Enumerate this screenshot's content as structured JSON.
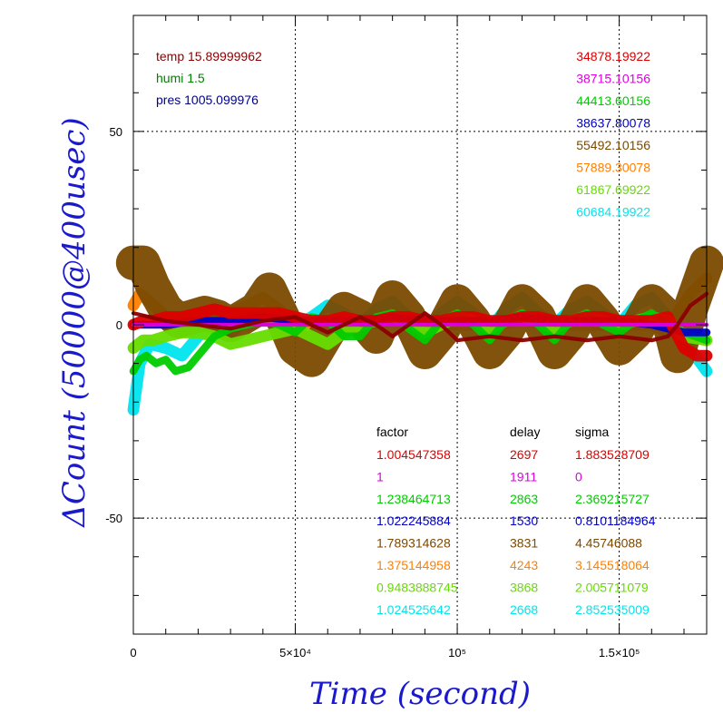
{
  "chart_data": {
    "type": "line",
    "xlabel": "Time (second)",
    "ylabel": "ΔCount (50000@400usec)",
    "xlim": [
      0,
      177000
    ],
    "ylim": [
      -80,
      80
    ],
    "x_ticks": [
      {
        "value": 0,
        "label": "0"
      },
      {
        "value": 50000,
        "label": "5×10⁴"
      },
      {
        "value": 100000,
        "label": "10⁵"
      },
      {
        "value": 150000,
        "label": "1.5×10⁵"
      }
    ],
    "y_ticks": [
      {
        "value": 50,
        "label": "50"
      },
      {
        "value": 0,
        "label": "0"
      },
      {
        "value": -50,
        "label": "-50"
      }
    ],
    "grid": true,
    "environment": [
      {
        "text": "temp 15.89999962",
        "color": "#8b0000"
      },
      {
        "text": "humi 1.5",
        "color": "#008000"
      },
      {
        "text": "pres 1005.099976",
        "color": "#00008b"
      }
    ],
    "right_values": [
      {
        "text": "34878.19922",
        "color": "#dd0000"
      },
      {
        "text": "38715.10156",
        "color": "#dd00dd"
      },
      {
        "text": "44413.60156",
        "color": "#00cc00"
      },
      {
        "text": "38637.80078",
        "color": "#0000cc"
      },
      {
        "text": "55492.10156",
        "color": "#7a4a00"
      },
      {
        "text": "57889.30078",
        "color": "#ff7f00"
      },
      {
        "text": "61867.69922",
        "color": "#66dd00"
      },
      {
        "text": "60684.19922",
        "color": "#00e5ee"
      }
    ],
    "table": {
      "headers": [
        "factor",
        "delay",
        "sigma"
      ],
      "rows": [
        {
          "factor": "1.004547358",
          "delay": "2697",
          "sigma": "1.883528709",
          "color": "#dd0000"
        },
        {
          "factor": "1",
          "delay": "1911",
          "sigma": "0",
          "color": "#dd00dd"
        },
        {
          "factor": "1.238464713",
          "delay": "2863",
          "sigma": "2.369215727",
          "color": "#00cc00"
        },
        {
          "factor": "1.022245884",
          "delay": "1530",
          "sigma": "0.8101184964",
          "color": "#0000cc"
        },
        {
          "factor": "1.789314628",
          "delay": "3831",
          "sigma": "4.45746088",
          "color": "#7a4a00"
        },
        {
          "factor": "1.375144958",
          "delay": "4243",
          "sigma": "3.145518064",
          "color": "#ff7f00"
        },
        {
          "factor": "0.9483888745",
          "delay": "3868",
          "sigma": "2.005711079",
          "color": "#66dd00"
        },
        {
          "factor": "1.024525642",
          "delay": "2668",
          "sigma": "2.852535009",
          "color": "#00e5ee"
        }
      ]
    },
    "series": [
      {
        "color": "#00e5ee",
        "band": 3,
        "x": [
          0,
          2000,
          5000,
          10000,
          15000,
          20000,
          25000,
          30000,
          35000,
          40000,
          45000,
          50000,
          55000,
          60000,
          65000,
          70000,
          75000,
          80000,
          85000,
          90000,
          95000,
          100000,
          105000,
          110000,
          115000,
          120000,
          125000,
          130000,
          135000,
          140000,
          145000,
          150000,
          155000,
          160000,
          165000,
          170000,
          177000
        ],
        "y": [
          -22,
          -10,
          -5,
          -6,
          -8,
          -3,
          0,
          -2,
          1,
          3,
          2,
          0,
          2,
          5,
          3,
          0,
          4,
          6,
          2,
          -2,
          3,
          6,
          3,
          -1,
          4,
          7,
          3,
          0,
          4,
          6,
          3,
          0,
          5,
          7,
          2,
          -4,
          -12
        ]
      },
      {
        "color": "#ff7f00",
        "band": 3,
        "x": [
          0,
          2000,
          5000,
          10000,
          15000,
          20000,
          25000,
          30000,
          35000,
          40000,
          45000,
          50000,
          60000,
          70000,
          80000,
          90000,
          100000,
          110000,
          120000,
          130000,
          140000,
          150000,
          160000,
          165000,
          168000,
          172000,
          177000
        ],
        "y": [
          5,
          8,
          6,
          2,
          1,
          1,
          2,
          3,
          5,
          7,
          4,
          0,
          1,
          0,
          1,
          0,
          0,
          0,
          1,
          0,
          0,
          0,
          0,
          -2,
          3,
          8,
          12
        ]
      },
      {
        "color": "#7a4a00",
        "band": 9,
        "x": [
          0,
          3000,
          6000,
          10000,
          14000,
          18000,
          22000,
          26000,
          30000,
          34000,
          38000,
          42000,
          46000,
          50000,
          55000,
          60000,
          65000,
          70000,
          75000,
          80000,
          85000,
          90000,
          95000,
          100000,
          105000,
          110000,
          115000,
          120000,
          125000,
          130000,
          135000,
          140000,
          145000,
          150000,
          155000,
          160000,
          165000,
          168000,
          172000,
          177000
        ],
        "y": [
          16,
          16,
          10,
          4,
          1,
          2,
          3,
          2,
          0,
          2,
          4,
          9,
          2,
          -6,
          -9,
          -2,
          4,
          2,
          -3,
          7,
          2,
          -7,
          -2,
          6,
          1,
          -7,
          -2,
          6,
          2,
          -7,
          -2,
          6,
          1,
          -6,
          -2,
          6,
          2,
          -8,
          4,
          16
        ]
      },
      {
        "color": "#66dd00",
        "band": 3,
        "x": [
          0,
          3000,
          6000,
          10000,
          15000,
          20000,
          25000,
          30000,
          35000,
          40000,
          45000,
          50000,
          55000,
          60000,
          65000,
          70000,
          75000,
          80000,
          85000,
          90000,
          95000,
          100000,
          105000,
          110000,
          115000,
          120000,
          125000,
          130000,
          135000,
          140000,
          145000,
          150000,
          155000,
          160000,
          165000,
          170000,
          177000
        ],
        "y": [
          -6,
          -4,
          -4,
          -3,
          -2,
          -2,
          -3,
          -5,
          -4,
          -3,
          -2,
          -1,
          -3,
          -5,
          -2,
          0,
          1,
          2,
          1,
          -2,
          0,
          2,
          1,
          -1,
          1,
          2,
          1,
          -1,
          1,
          2,
          1,
          0,
          1,
          2,
          1,
          -3,
          -4
        ]
      },
      {
        "color": "#00cc00",
        "band": 2,
        "x": [
          0,
          2000,
          4000,
          7000,
          10000,
          13000,
          17000,
          20000,
          25000,
          30000,
          35000,
          40000,
          45000,
          50000,
          55000,
          60000,
          65000,
          70000,
          75000,
          80000,
          85000,
          90000,
          95000,
          100000,
          105000,
          110000,
          115000,
          120000,
          125000,
          130000,
          135000,
          140000,
          145000,
          150000,
          155000,
          160000,
          165000,
          170000,
          177000
        ],
        "y": [
          -12,
          -9,
          -8,
          -10,
          -9,
          -12,
          -11,
          -8,
          -3,
          -1,
          0,
          1,
          0,
          -2,
          2,
          1,
          -3,
          -3,
          2,
          3,
          -1,
          -4,
          1,
          3,
          0,
          -4,
          1,
          3,
          0,
          -4,
          1,
          3,
          0,
          -2,
          1,
          3,
          0,
          -2,
          -4
        ]
      },
      {
        "color": "#0000cc",
        "band": 2,
        "x": [
          0,
          10000,
          20000,
          30000,
          40000,
          50000,
          60000,
          70000,
          80000,
          90000,
          100000,
          110000,
          120000,
          130000,
          140000,
          150000,
          160000,
          165000,
          170000,
          177000
        ],
        "y": [
          0,
          0,
          1,
          1,
          2,
          1,
          1,
          1,
          2,
          1,
          1,
          1,
          2,
          1,
          1,
          1,
          0,
          -1,
          -2,
          -2
        ]
      },
      {
        "color": "#dd0000",
        "band": 3,
        "x": [
          0,
          3000,
          6000,
          10000,
          15000,
          20000,
          25000,
          30000,
          35000,
          40000,
          45000,
          50000,
          55000,
          60000,
          65000,
          70000,
          75000,
          80000,
          85000,
          90000,
          95000,
          100000,
          105000,
          110000,
          115000,
          120000,
          125000,
          130000,
          135000,
          140000,
          145000,
          150000,
          155000,
          160000,
          165000,
          170000,
          174000,
          177000
        ],
        "y": [
          0,
          1,
          1,
          2,
          2,
          3,
          4,
          3,
          3,
          3,
          3,
          2,
          1,
          1,
          2,
          1,
          1,
          2,
          2,
          1,
          1,
          2,
          2,
          1,
          1,
          2,
          2,
          1,
          1,
          2,
          2,
          1,
          1,
          1,
          2,
          -6,
          -8,
          -8
        ]
      },
      {
        "color": "#dd00dd",
        "band": 1,
        "x": [
          0,
          177000
        ],
        "y": [
          0,
          0
        ]
      },
      {
        "color": "#8b0000",
        "band": 1,
        "x": [
          0,
          10000,
          20000,
          30000,
          40000,
          50000,
          55000,
          60000,
          65000,
          70000,
          75000,
          80000,
          85000,
          90000,
          95000,
          100000,
          110000,
          120000,
          130000,
          140000,
          150000,
          160000,
          165000,
          168000,
          172000,
          177000
        ],
        "y": [
          3,
          1,
          0,
          -1,
          1,
          2,
          0,
          -2,
          0,
          2,
          0,
          -3,
          0,
          3,
          0,
          -4,
          -3,
          -4,
          -3,
          -4,
          -3,
          -4,
          -3,
          0,
          5,
          8
        ]
      }
    ]
  }
}
